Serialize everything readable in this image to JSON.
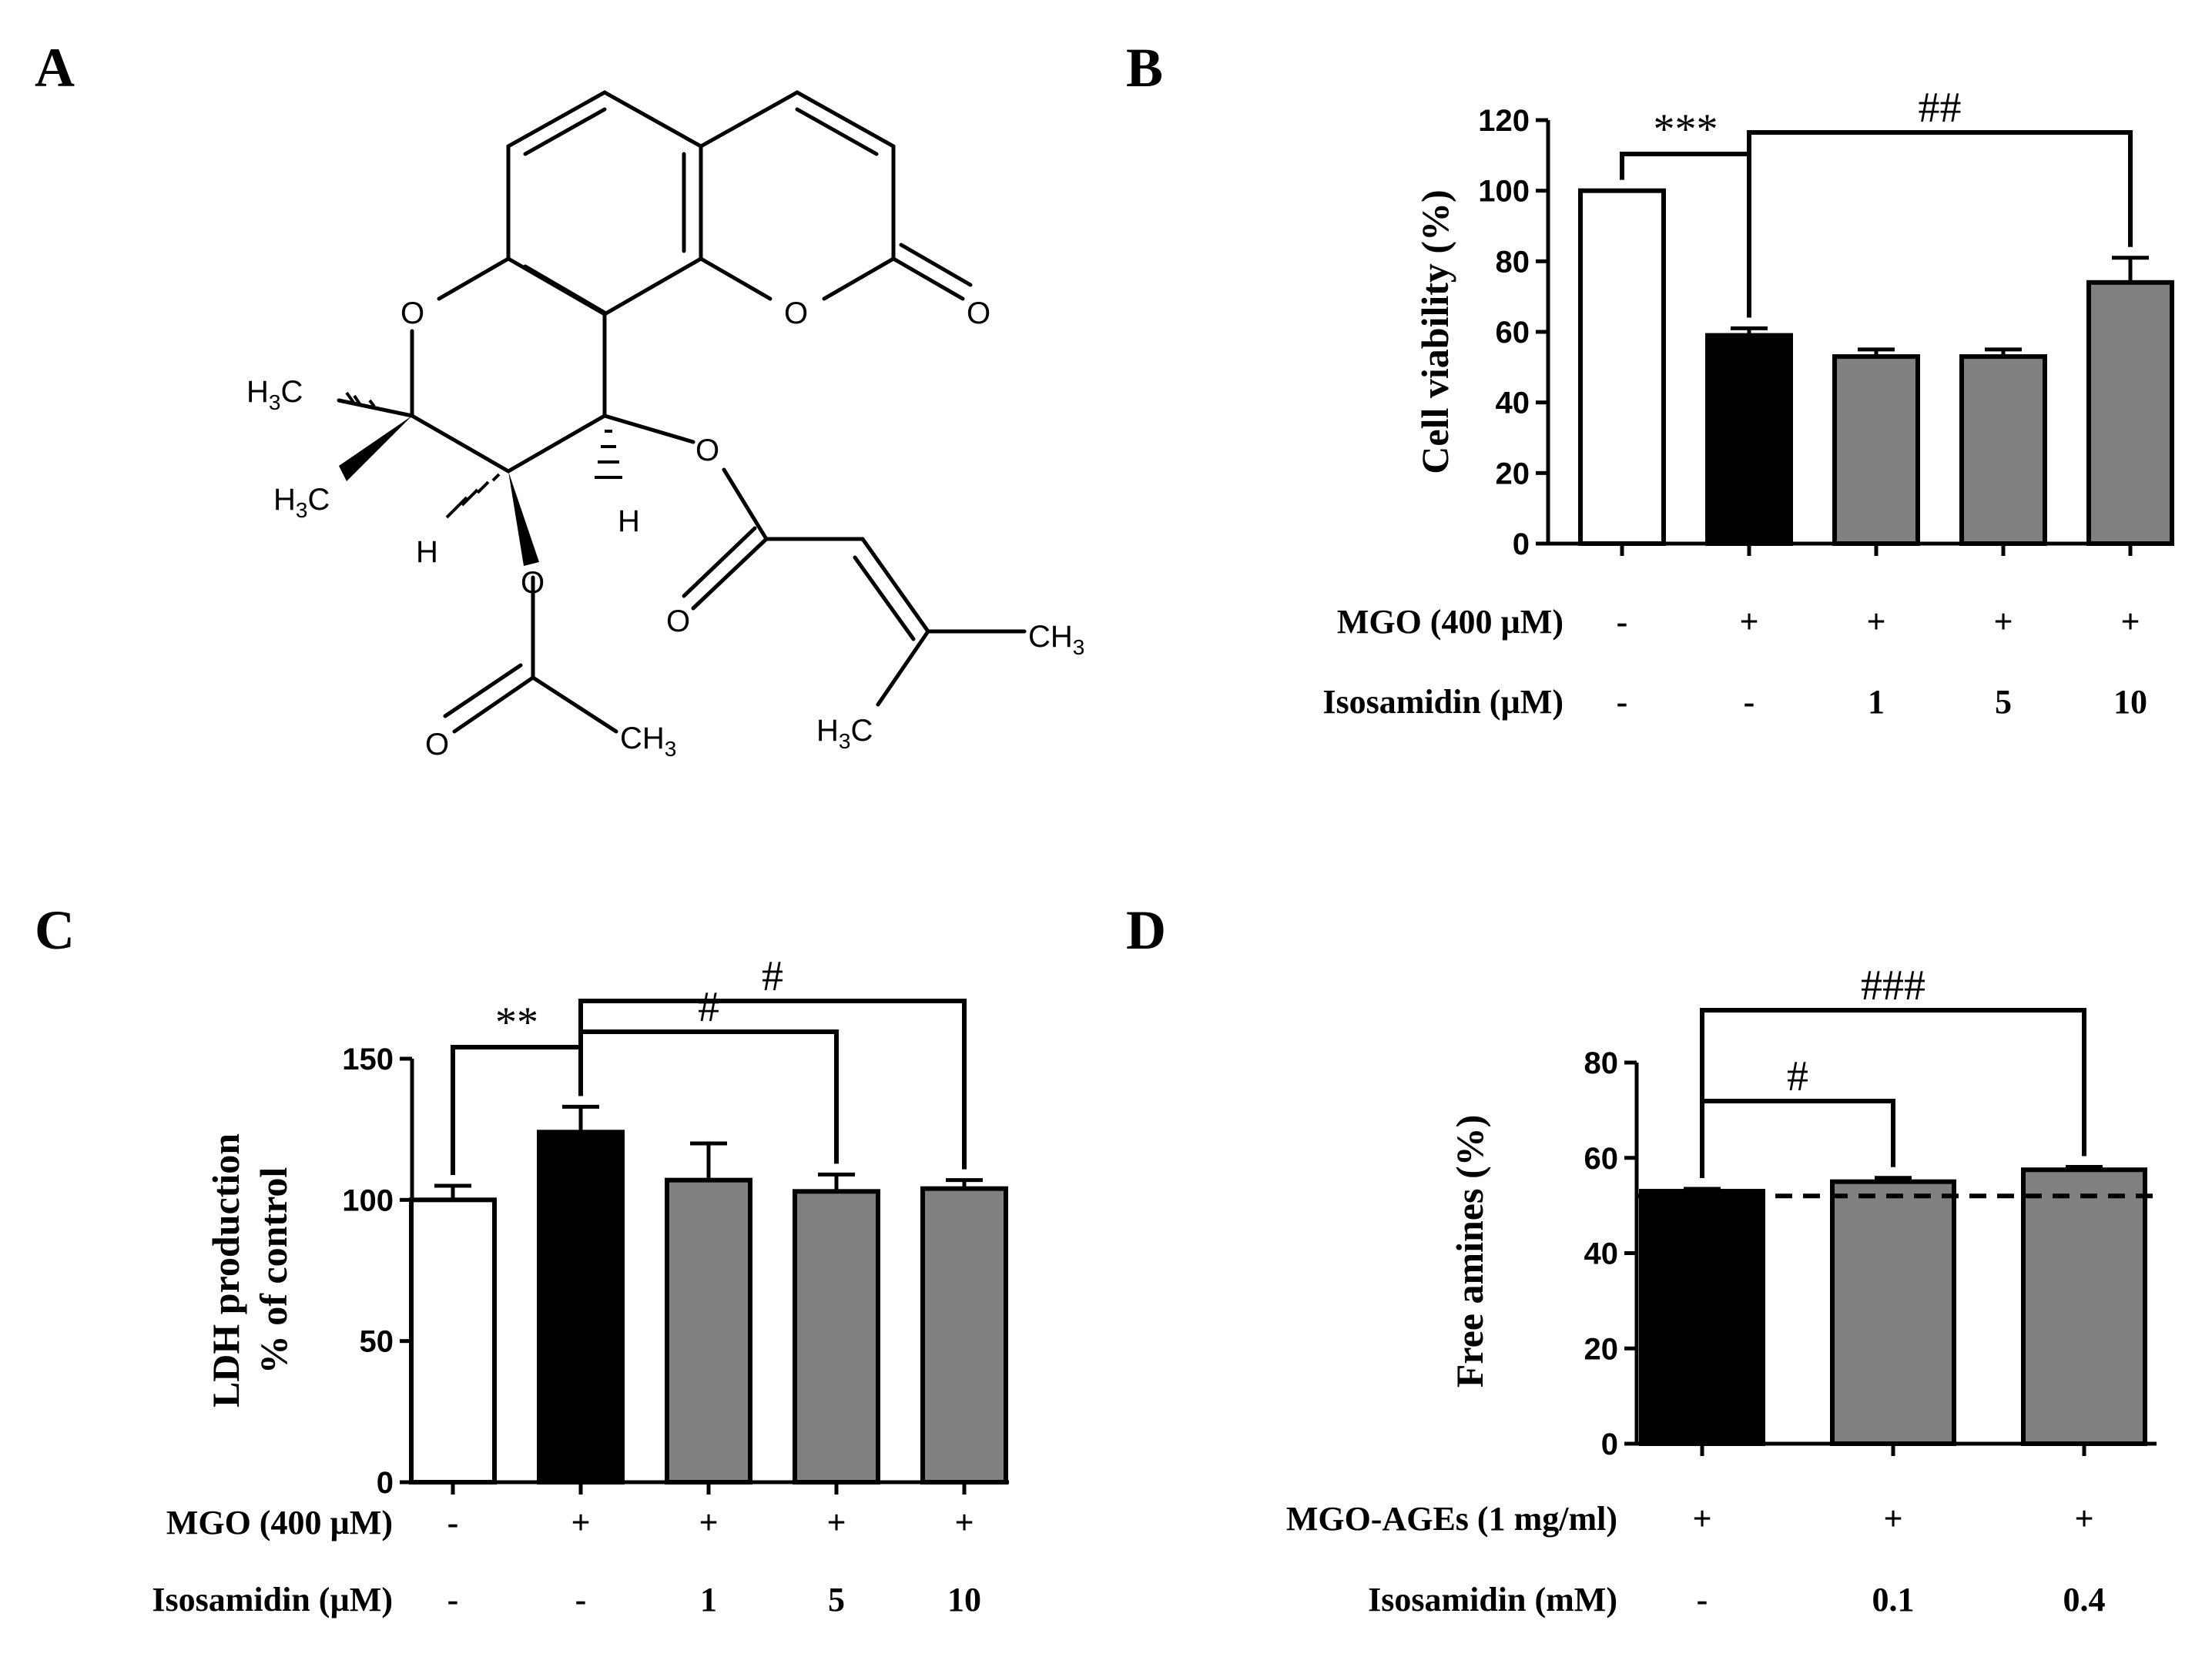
{
  "panels": {
    "A": {
      "label": "A",
      "atoms": {
        "O1": "O",
        "O_carbonyl": "O",
        "O_ring_lactone": "O",
        "O_ester1": "O",
        "O_ester2": "O",
        "O_acetyl": "O",
        "O_acetyl_carbonyl": "O",
        "H1": "H",
        "H2": "H",
        "ch3_a": "H",
        "ch3_a_sub": "3",
        "ch3_a_c": "C",
        "ch3_b": "H",
        "ch3_b_sub": "3",
        "ch3_b_c": "C",
        "ch3_c": "CH",
        "ch3_c_sub": "3",
        "ch3_d": "H",
        "ch3_d_sub": "3",
        "ch3_d_c": "C",
        "ch3_e": "CH",
        "ch3_e_sub": "3"
      }
    }
  },
  "chart_data": [
    {
      "panel": "B",
      "type": "bar",
      "ylabel": "Cell viability (%)",
      "ylim": [
        0,
        120
      ],
      "yticks": [
        "0",
        "20",
        "40",
        "60",
        "80",
        "100",
        "120"
      ],
      "values": [
        100,
        59,
        53,
        53,
        74
      ],
      "errors": [
        0,
        2,
        2,
        2,
        7
      ],
      "colors": [
        "#ffffff",
        "#000000",
        "#808080",
        "#808080",
        "#808080"
      ],
      "conditions": [
        {
          "label": "MGO (400 µM)",
          "values": [
            "-",
            "+",
            "+",
            "+",
            "+"
          ]
        },
        {
          "label": "Isosamidin (µM)",
          "values": [
            "-",
            "-",
            "1",
            "5",
            "10"
          ]
        }
      ],
      "significance": [
        {
          "from": 0,
          "to": 1,
          "text": "***"
        },
        {
          "from": 1,
          "to": 4,
          "text": "##"
        }
      ]
    },
    {
      "panel": "C",
      "type": "bar",
      "ylabel": "LDH production",
      "ylabel2": "% of control",
      "ylim": [
        0,
        150
      ],
      "yticks": [
        "0",
        "50",
        "100",
        "150"
      ],
      "values": [
        100,
        124,
        107,
        103,
        104
      ],
      "errors": [
        5,
        9,
        13,
        6,
        3
      ],
      "colors": [
        "#ffffff",
        "#000000",
        "#808080",
        "#808080",
        "#808080"
      ],
      "conditions": [
        {
          "label": "MGO (400 µM)",
          "values": [
            "-",
            "+",
            "+",
            "+",
            "+"
          ]
        },
        {
          "label": "Isosamidin (µM)",
          "values": [
            "-",
            "-",
            "1",
            "5",
            "10"
          ]
        }
      ],
      "significance": [
        {
          "from": 0,
          "to": 1,
          "text": "**"
        },
        {
          "from": 1,
          "to": 3,
          "text": "#"
        },
        {
          "from": 1,
          "to": 4,
          "text": "#"
        }
      ]
    },
    {
      "panel": "D",
      "type": "bar",
      "ylabel": "Free amines (%)",
      "ylim": [
        0,
        80
      ],
      "yticks": [
        "0",
        "20",
        "40",
        "60",
        "80"
      ],
      "values": [
        53,
        55,
        57.5
      ],
      "errors": [
        0.5,
        0.8,
        0.6
      ],
      "colors": [
        "#000000",
        "#808080",
        "#808080"
      ],
      "reference_line": 52,
      "conditions": [
        {
          "label": "MGO-AGEs (1 mg/ml)",
          "values": [
            "+",
            "+",
            "+"
          ]
        },
        {
          "label": "Isosamidin (mM)",
          "values": [
            "-",
            "0.1",
            "0.4"
          ]
        }
      ],
      "significance": [
        {
          "from": 0,
          "to": 1,
          "text": "#"
        },
        {
          "from": 0,
          "to": 2,
          "text": "###"
        }
      ]
    }
  ]
}
